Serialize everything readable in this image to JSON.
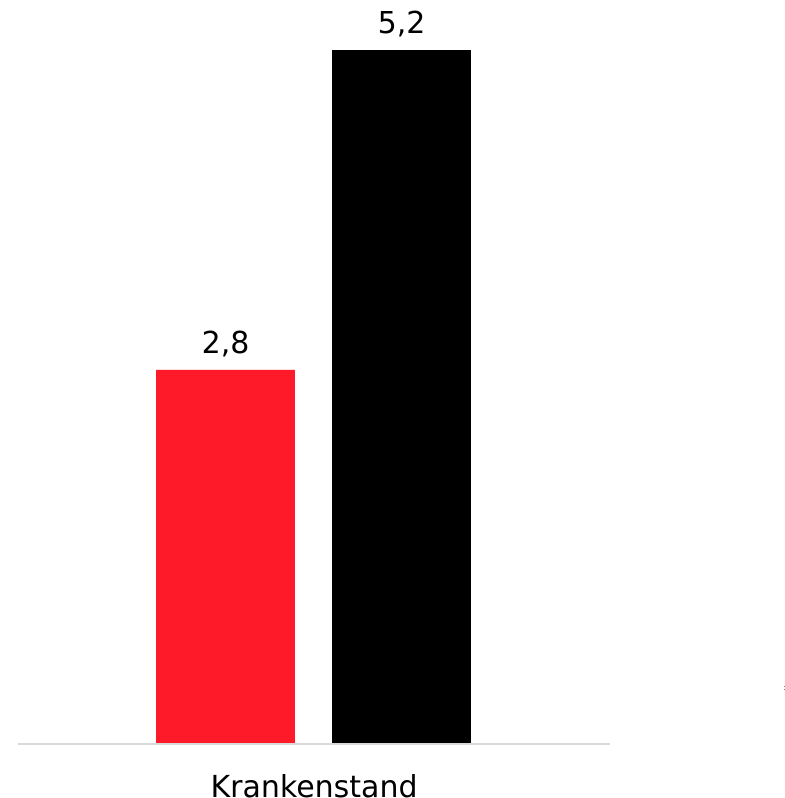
{
  "chart_data": {
    "type": "bar",
    "categories": [
      "Krankenstand"
    ],
    "series": [
      {
        "values": [
          2.8
        ],
        "value_labels": [
          "2,8"
        ],
        "color": "#ff1a2a"
      },
      {
        "values": [
          5.2
        ],
        "value_labels": [
          "5,2"
        ],
        "color": "#000000"
      }
    ],
    "ylim": [
      0,
      5.2
    ],
    "grid": false,
    "legend": "none",
    "axis_color": "#d9d9d9"
  }
}
